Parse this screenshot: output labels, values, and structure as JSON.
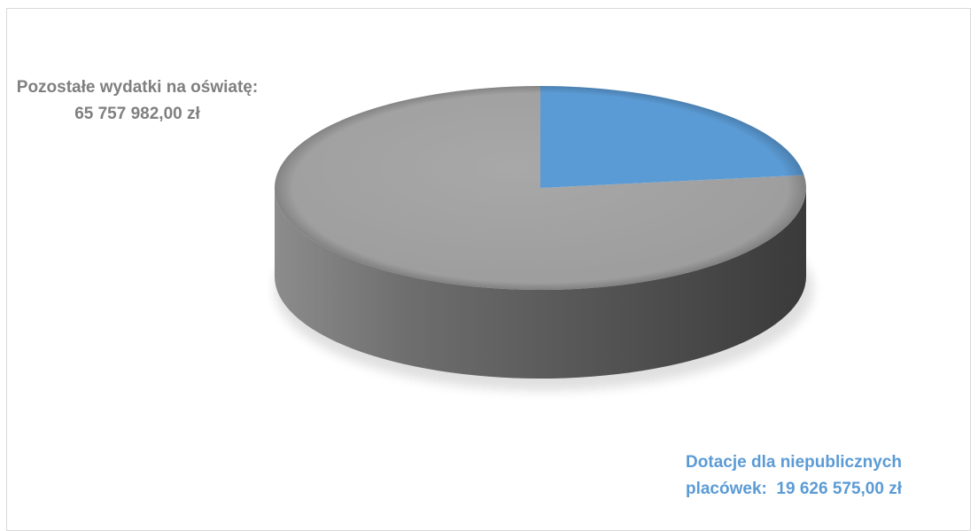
{
  "chart_data": {
    "type": "pie",
    "style": "3d",
    "series": [
      {
        "name": "Pozostałe wydatki na oświatę:",
        "value_label": "65 757 982,00 zł",
        "value": 65757982.0,
        "color": "#a5a5a5"
      },
      {
        "name": "Dotacje dla niepublicznych placówek:",
        "name_line1": "Dotacje dla niepublicznych",
        "name_line2": "placówek:",
        "value_label": "19 626 575,00 zł",
        "value": 19626575.0,
        "color": "#5b9bd5"
      }
    ],
    "title": "",
    "legend": "none",
    "data_labels": "outside"
  }
}
